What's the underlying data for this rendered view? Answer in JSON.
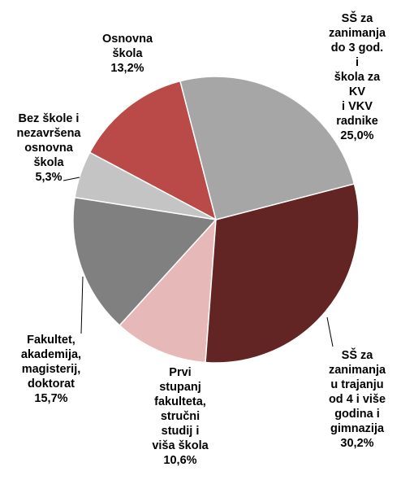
{
  "chart_data": {
    "type": "pie",
    "categories": [
      "SŠ za\nzanimanja\ndo 3 god. i\nškola za KV\ni VKV\nradnike",
      "SŠ za\nzanimanja\nu trajanju\nod 4 i više\ngodina i\ngimnazija",
      "Prvi\nstupanj\nfakulteta,\nstručni\nstudij i\nviša škola",
      "Fakultet,\nakademija,\nmagisterij,\ndoktorat",
      "Bez škole i\nnezavršena\nosnovna\nškola",
      "Osnovna\nškola"
    ],
    "values": [
      25.0,
      30.2,
      10.6,
      15.7,
      5.3,
      13.2
    ],
    "value_labels": [
      "25,0%",
      "30,2%",
      "10,6%",
      "15,7%",
      "5,3%",
      "13,2%"
    ],
    "colors": [
      "#a6a6a6",
      "#632523",
      "#e6b9b8",
      "#808080",
      "#c4c4c4",
      "#b94a48"
    ]
  }
}
